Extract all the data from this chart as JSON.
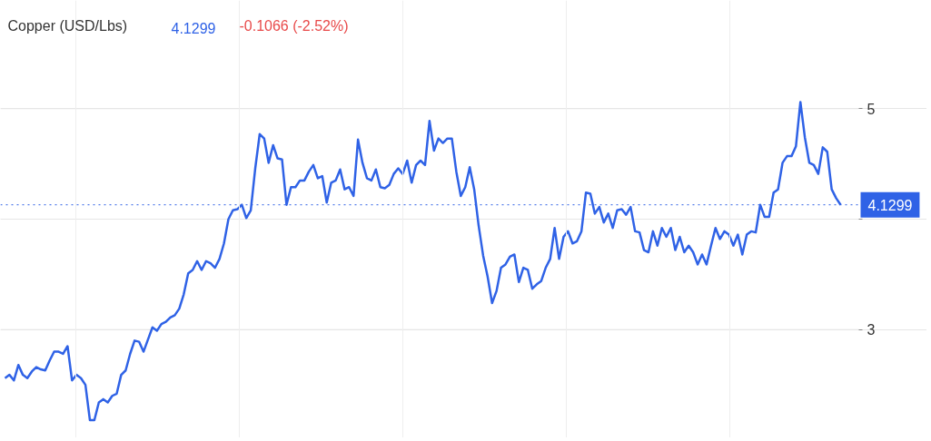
{
  "chart_data": {
    "type": "line",
    "title": "Copper (USD/Lbs)",
    "annotations": [
      "4.1299",
      "-0.1066 (-2.52%)"
    ],
    "categories": [
      null,
      null,
      null,
      null,
      null,
      null,
      null,
      null,
      null,
      null,
      null,
      null,
      null,
      null,
      null,
      null,
      null,
      null,
      null,
      null,
      null,
      null,
      null,
      null,
      null,
      null,
      null,
      null,
      null,
      null,
      null,
      null,
      null,
      null,
      null,
      null,
      null,
      null,
      null,
      null,
      null,
      null,
      null,
      null,
      null,
      null,
      null,
      null,
      null,
      null,
      null,
      null,
      null,
      null,
      null,
      null,
      null,
      null,
      null,
      null,
      null,
      null,
      null,
      null,
      null,
      null,
      null,
      null,
      null,
      null,
      null,
      null,
      null,
      null,
      null,
      null,
      null,
      null,
      null,
      null,
      null,
      null,
      null,
      null,
      null,
      null,
      null,
      null,
      null,
      null,
      null,
      null,
      null,
      null,
      null,
      null,
      null,
      null,
      null,
      null,
      null,
      null,
      null,
      null,
      null,
      null,
      null,
      null,
      null,
      null,
      null,
      null,
      null,
      null,
      null,
      null,
      null,
      null,
      null,
      null,
      null,
      null,
      null,
      null,
      null,
      null,
      null,
      null,
      null,
      null,
      null,
      null,
      null,
      null,
      null,
      null,
      null,
      null,
      null,
      null,
      null,
      null,
      null,
      null,
      null,
      null,
      null,
      null,
      null,
      null,
      null,
      null,
      null,
      null,
      null,
      null,
      null,
      null,
      null,
      null,
      null,
      null,
      null,
      null,
      null,
      null,
      null,
      null,
      null,
      null,
      null,
      null,
      null,
      null,
      null,
      null,
      null,
      null,
      null,
      null,
      null,
      null,
      null,
      null,
      null,
      null,
      null,
      null
    ],
    "series": [
      {
        "color": "#2f62e6",
        "values": [
          2.56,
          2.59,
          2.54,
          2.68,
          2.59,
          2.56,
          2.62,
          2.66,
          2.64,
          2.63,
          2.72,
          2.8,
          2.8,
          2.78,
          2.85,
          2.54,
          2.59,
          2.56,
          2.5,
          2.18,
          2.18,
          2.34,
          2.37,
          2.34,
          2.4,
          2.42,
          2.59,
          2.63,
          2.78,
          2.9,
          2.89,
          2.8,
          2.91,
          3.02,
          2.99,
          3.05,
          3.07,
          3.11,
          3.13,
          3.19,
          3.32,
          3.51,
          3.54,
          3.62,
          3.54,
          3.62,
          3.6,
          3.56,
          3.64,
          3.78,
          4.0,
          4.08,
          4.09,
          4.13,
          4.01,
          4.08,
          4.46,
          4.77,
          4.73,
          4.51,
          4.67,
          4.55,
          4.54,
          4.13,
          4.29,
          4.29,
          4.35,
          4.35,
          4.43,
          4.49,
          4.37,
          4.39,
          4.15,
          4.33,
          4.35,
          4.45,
          4.27,
          4.29,
          4.21,
          4.72,
          4.51,
          4.37,
          4.35,
          4.45,
          4.29,
          4.28,
          4.31,
          4.41,
          4.46,
          4.41,
          4.53,
          4.33,
          4.49,
          4.53,
          4.49,
          4.89,
          4.62,
          4.73,
          4.69,
          4.73,
          4.73,
          4.43,
          4.21,
          4.29,
          4.47,
          4.27,
          3.94,
          3.67,
          3.48,
          3.24,
          3.35,
          3.56,
          3.59,
          3.66,
          3.68,
          3.43,
          3.56,
          3.54,
          3.37,
          3.41,
          3.44,
          3.56,
          3.64,
          3.92,
          3.64,
          3.84,
          3.89,
          3.78,
          3.8,
          3.89,
          4.24,
          4.23,
          4.05,
          4.11,
          3.97,
          4.05,
          3.92,
          4.08,
          4.09,
          4.04,
          4.11,
          3.89,
          3.88,
          3.72,
          3.7,
          3.89,
          3.76,
          3.92,
          3.84,
          3.92,
          3.72,
          3.84,
          3.7,
          3.76,
          3.7,
          3.59,
          3.68,
          3.59,
          3.76,
          3.92,
          3.82,
          3.89,
          3.86,
          3.76,
          3.86,
          3.68,
          3.86,
          3.89,
          3.88,
          4.13,
          4.02,
          4.02,
          4.24,
          4.27,
          4.51,
          4.57,
          4.57,
          4.66,
          5.06,
          4.74,
          4.51,
          4.49,
          4.41,
          4.65,
          4.61,
          4.27,
          4.19,
          4.13
        ]
      }
    ],
    "ylim": [
      2.02,
      5.98
    ],
    "yticks": [
      3,
      {
        "value": 4,
        "label": null
      },
      5
    ],
    "ref_lines": [
      {
        "axis": "y",
        "value": 4.1299,
        "label": "4.1299",
        "color": "#2f62e6",
        "line_style": "dotted"
      }
    ],
    "grid": true,
    "tick_labels": "y"
  }
}
